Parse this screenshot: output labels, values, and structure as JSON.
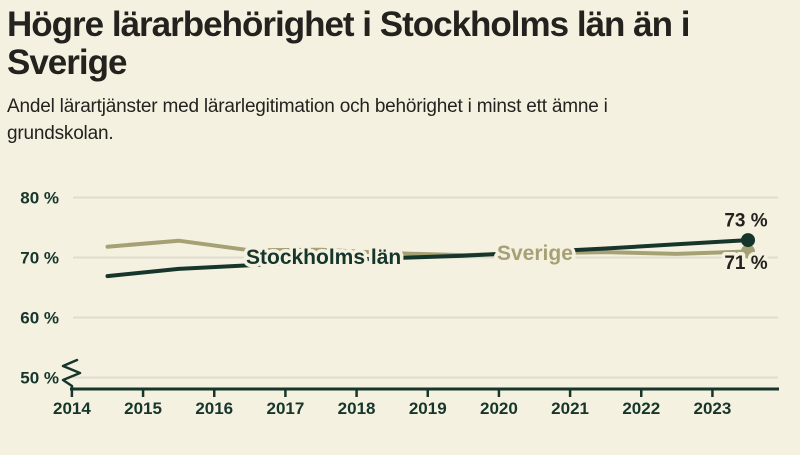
{
  "header": {
    "title_lines": [
      "Högre lärarbehörighet i Stockholms län än i",
      "Sverige"
    ],
    "subtitle_lines": [
      "Andel lärartjänster med lärarlegitimation och behörighet i minst ett ämne i",
      "grundskolan."
    ]
  },
  "colors": {
    "background": "#f5f1e0",
    "ink": "#23221e",
    "dark_green": "#16362c",
    "olive": "#a6a075",
    "grid": "#dfddd2",
    "axis": "#16362c"
  },
  "chart_data": {
    "type": "line",
    "x_axis": {
      "tick_labels": [
        "2014",
        "2015",
        "2016",
        "2017",
        "2018",
        "2019",
        "2020",
        "2021",
        "2022",
        "2023"
      ],
      "tick_values": [
        2014,
        2015,
        2016,
        2017,
        2018,
        2019,
        2020,
        2021,
        2022,
        2023
      ]
    },
    "y_axis": {
      "tick_labels": [
        "80 %",
        "70 %",
        "60 %",
        "50 %"
      ],
      "tick_values": [
        80,
        70,
        60,
        50
      ],
      "unit": "%",
      "ylim": [
        50,
        80
      ],
      "axis_break_below": 50,
      "grid": true
    },
    "legend_position": "inline-labels-on-lines",
    "series": [
      {
        "name": "Stockholms län",
        "color": "#16362c",
        "x": [
          2014.5,
          2015.5,
          2016.5,
          2017.5,
          2018.5,
          2019.5,
          2020.5,
          2021.5,
          2022.5,
          2023.5
        ],
        "values": [
          66.9,
          68.1,
          68.7,
          69.4,
          69.9,
          70.3,
          70.9,
          71.5,
          72.2,
          72.9
        ],
        "end_dot": true,
        "end_label": "73 %"
      },
      {
        "name": "Sverige",
        "color": "#a6a075",
        "x": [
          2014.5,
          2015.5,
          2016.5,
          2017.5,
          2018.5,
          2019.5,
          2020.5,
          2021.5,
          2022.5,
          2023.5
        ],
        "values": [
          71.8,
          72.8,
          71.2,
          71.3,
          70.7,
          70.4,
          70.7,
          70.9,
          70.6,
          71.0
        ],
        "end_dot": true,
        "end_label": "71 %"
      }
    ]
  }
}
